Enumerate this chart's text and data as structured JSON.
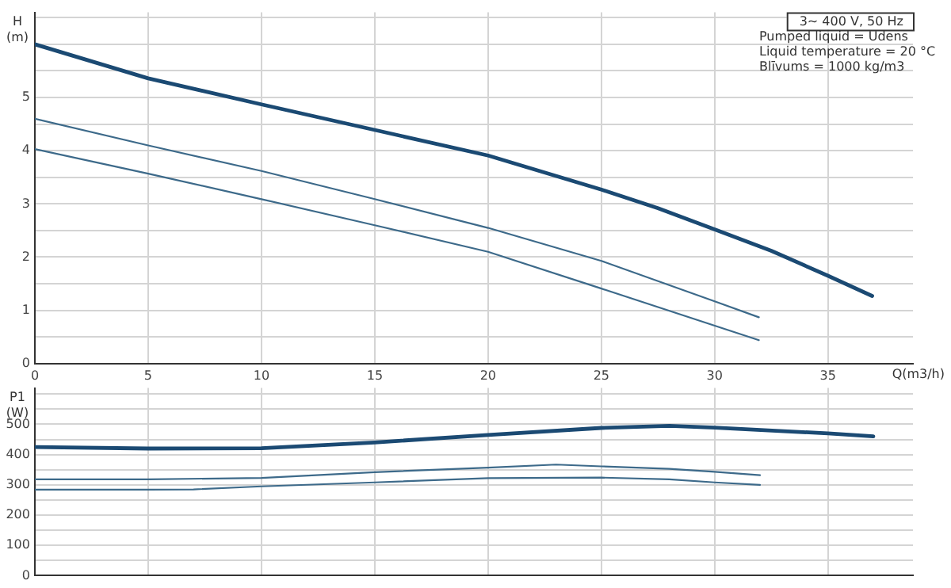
{
  "chart_data": [
    {
      "type": "line",
      "xlabel": "Q(m3/h)",
      "ylabel": "H (m)",
      "annotations": [
        "3~ 400 V, 50 Hz",
        "Pumped liquid = Udens",
        "Liquid temperature = 20 °C",
        "Blīvums = 1000 kg/m3"
      ],
      "xlim": [
        0,
        38.75
      ],
      "xticks": [
        0,
        5,
        10,
        15,
        20,
        25,
        30,
        35
      ],
      "ylim": [
        0,
        6.6
      ],
      "yticks": [
        0,
        {
          "value": 0.5,
          "label": null
        },
        1,
        {
          "value": 1.5,
          "label": null
        },
        2,
        {
          "value": 2.5,
          "label": null
        },
        3,
        {
          "value": 3.5,
          "label": null
        },
        4,
        {
          "value": 4.5,
          "label": null
        },
        5,
        {
          "value": 5.5,
          "label": null
        },
        {
          "value": 6,
          "label": null
        },
        {
          "value": 6.5,
          "label": null
        }
      ],
      "grid": true,
      "legend": false,
      "series": [
        {
          "color": "#1b4a73",
          "x": [
            0,
            5,
            10,
            15,
            20,
            25,
            27.5,
            30,
            32.5,
            35,
            36.95
          ],
          "values": [
            6.0,
            5.36,
            4.87,
            4.39,
            3.91,
            3.27,
            2.92,
            2.52,
            2.12,
            1.65,
            1.27
          ]
        },
        {
          "color": "#3d6a8a",
          "x": [
            0,
            5,
            10,
            15,
            20,
            25,
            30,
            31.95
          ],
          "values": [
            4.6,
            4.1,
            3.62,
            3.09,
            2.55,
            1.93,
            1.17,
            0.87
          ]
        },
        {
          "color": "#3d6a8a",
          "x": [
            0,
            5,
            10,
            15,
            20,
            25,
            31.95
          ],
          "values": [
            4.03,
            3.57,
            3.09,
            2.6,
            2.1,
            1.41,
            0.44
          ]
        }
      ]
    },
    {
      "type": "line",
      "ylabel": "P1 (W)",
      "tick_labels": "y",
      "xlim": [
        0,
        38.75
      ],
      "xticks": [
        0,
        5,
        10,
        15,
        20,
        25,
        30,
        35
      ],
      "ylim": [
        0,
        620
      ],
      "yticks": [
        0,
        {
          "value": 50,
          "label": null
        },
        100,
        {
          "value": 150,
          "label": null
        },
        200,
        {
          "value": 250,
          "label": null
        },
        300,
        {
          "value": 350,
          "label": null
        },
        400,
        {
          "value": 450,
          "label": null
        },
        500,
        {
          "value": 550,
          "label": null
        },
        {
          "value": 600,
          "label": null
        }
      ],
      "grid": true,
      "legend": false,
      "series": [
        {
          "color": "#1b4a73",
          "x": [
            0,
            5,
            10,
            15,
            20,
            25,
            28,
            30,
            35,
            37
          ],
          "values": [
            425,
            420,
            421,
            440,
            465,
            488,
            495,
            489,
            470,
            460
          ]
        },
        {
          "color": "#3d6a8a",
          "x": [
            0,
            5,
            10,
            15,
            20,
            23,
            25,
            28,
            30,
            32
          ],
          "values": [
            318,
            318,
            323,
            342,
            357,
            367,
            361,
            353,
            343,
            332
          ]
        },
        {
          "color": "#3d6a8a",
          "x": [
            0,
            5,
            7,
            10,
            15,
            20,
            25,
            28,
            30,
            32
          ],
          "values": [
            284,
            284,
            285,
            295,
            308,
            322,
            324,
            318,
            308,
            300
          ]
        }
      ]
    }
  ]
}
